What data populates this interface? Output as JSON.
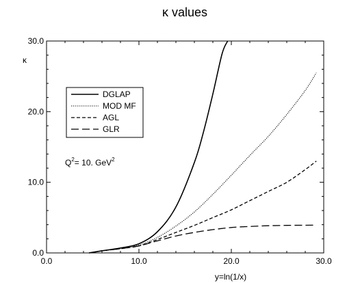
{
  "chart_data": {
    "type": "line",
    "title": "κ values",
    "xlabel": "y=ln(1/x)",
    "ylabel": "κ",
    "xlim": [
      0,
      30
    ],
    "ylim": [
      0,
      30
    ],
    "x_ticks": [
      "0.0",
      "10.0",
      "20.0",
      "30.0"
    ],
    "y_ticks": [
      "0.0",
      "10.0",
      "20.0",
      "30.0"
    ],
    "grid": false,
    "legend_position": "upper-left",
    "annotation": {
      "base": "Q",
      "sup1": "2",
      "middle": "= 10. GeV",
      "sup2": "2"
    },
    "series": [
      {
        "name": "DGLAP",
        "dash": "solid",
        "x": [
          4.6,
          6,
          8,
          10,
          12,
          14,
          16,
          17,
          18,
          19,
          19.6
        ],
        "y": [
          0.0,
          0.3,
          0.7,
          1.3,
          3.0,
          6.5,
          12.8,
          17.2,
          22.5,
          28.2,
          30.0
        ]
      },
      {
        "name": "MOD MF",
        "dash": "dotted",
        "x": [
          4.6,
          6,
          8,
          10,
          12,
          14,
          16,
          18,
          20,
          22,
          24,
          26,
          28,
          29.2
        ],
        "y": [
          0.0,
          0.3,
          0.6,
          1.1,
          2.2,
          3.8,
          5.8,
          8.3,
          11.0,
          13.8,
          16.5,
          19.6,
          23.0,
          25.5
        ]
      },
      {
        "name": "AGL",
        "dash": "dashed",
        "x": [
          4.6,
          6,
          8,
          10,
          12,
          14,
          16,
          18,
          20,
          22,
          24,
          26,
          28,
          29.2
        ],
        "y": [
          0.0,
          0.3,
          0.6,
          1.0,
          1.9,
          2.9,
          3.9,
          5.0,
          6.1,
          7.4,
          8.7,
          10.0,
          11.8,
          13.0
        ]
      },
      {
        "name": "GLR",
        "dash": "long-dashed",
        "x": [
          4.6,
          6,
          8,
          10,
          12,
          14,
          16,
          18,
          20,
          22,
          24,
          26,
          28,
          29.2
        ],
        "y": [
          0.0,
          0.3,
          0.6,
          1.0,
          1.7,
          2.4,
          2.9,
          3.3,
          3.6,
          3.75,
          3.85,
          3.9,
          3.92,
          3.93
        ]
      }
    ]
  }
}
